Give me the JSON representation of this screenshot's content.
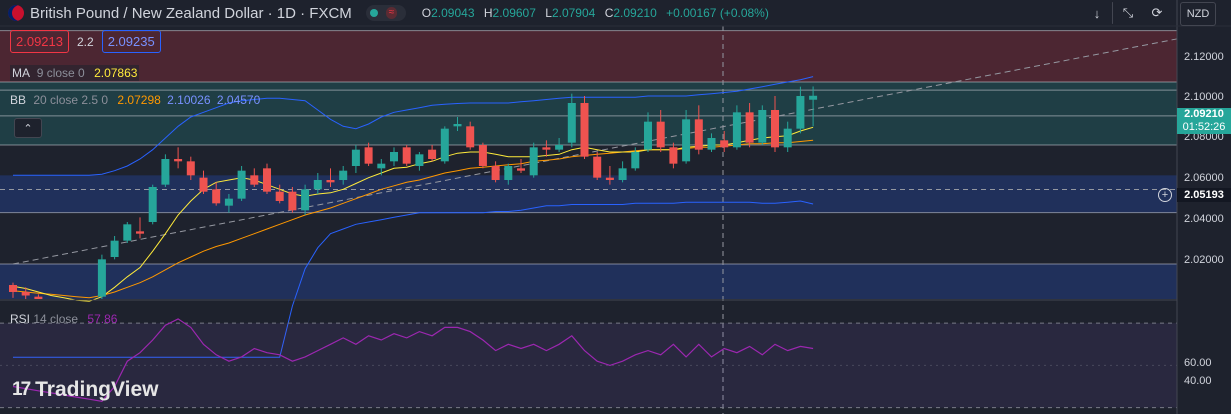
{
  "header": {
    "symbol": "British Pound / New Zealand Dollar · 1D · FXCM",
    "ohlc": [
      {
        "k": "O",
        "v": "2.09043"
      },
      {
        "k": "H",
        "v": "2.09607"
      },
      {
        "k": "L",
        "v": "2.07904"
      },
      {
        "k": "C",
        "v": "2.09210"
      }
    ],
    "change": "+0.00167 (+0.08%)",
    "wave_glyph": "≈"
  },
  "trade": {
    "sell": "2.09213",
    "spread": "2.2",
    "buy": "2.09235"
  },
  "indicators": {
    "ma": {
      "name": "MA",
      "params": "9 close 0",
      "value": "2.07863",
      "color": "#ffeb3b"
    },
    "bb": {
      "name": "BB",
      "params": "20 close 2.5 0",
      "basis": "2.07298",
      "upper": "2.10026",
      "lower": "2.04570",
      "basis_color": "#ff9800",
      "band_color": "#2962ff"
    },
    "rsi": {
      "name": "RSI",
      "params": "14 close",
      "value": "57.86",
      "color": "#9c27b0"
    }
  },
  "toolbar": {
    "down_icon": "↓",
    "expand_icon": "⤡",
    "restore_icon": "⟳",
    "currency": "NZD",
    "collapse_icon": "⌃"
  },
  "price_axis": {
    "labels": [
      "2.12000",
      "2.10000",
      "2.08000",
      "2.06000",
      "2.04000",
      "2.02000"
    ],
    "last_price": "2.09210",
    "countdown": "01:52:26",
    "crosshair_price": "2.05193",
    "plus_icon": "+"
  },
  "rsi_axis": {
    "labels": [
      "60.00",
      "40.00"
    ]
  },
  "brand": {
    "mark": "17",
    "name": "TradingView"
  },
  "colors": {
    "up": "#26a69a",
    "down": "#ef5350",
    "bg": "#1e222d"
  },
  "chart_data": {
    "type": "candlestick",
    "ylim": [
      2.005,
      2.122
    ],
    "zones": [
      {
        "from": 2.098,
        "to": 2.12,
        "color": "#f23645"
      },
      {
        "from": 2.071,
        "to": 2.098,
        "color": "#26a69a"
      },
      {
        "from": 2.042,
        "to": 2.058,
        "color": "#2962ff"
      },
      {
        "from": 2.005,
        "to": 2.02,
        "color": "#2962ff"
      }
    ],
    "hlines": [
      2.12,
      2.098,
      2.0945,
      2.0835,
      2.071,
      2.042,
      2.02
    ],
    "candles": [
      {
        "o": 2.011,
        "h": 2.012,
        "l": 2.0055,
        "c": 2.008
      },
      {
        "o": 2.008,
        "h": 2.01,
        "l": 2.005,
        "c": 2.0065
      },
      {
        "o": 2.006,
        "h": 2.007,
        "l": 2.003,
        "c": 2.004
      },
      {
        "o": 2.004,
        "h": 2.005,
        "l": 2.002,
        "c": 2.003
      },
      {
        "o": 2.003,
        "h": 2.004,
        "l": 2.001,
        "c": 2.002
      },
      {
        "o": 2.002,
        "h": 2.003,
        "l": 2.0,
        "c": 2.001
      },
      {
        "o": 2.001,
        "h": 2.002,
        "l": 2.0,
        "c": 2.001
      },
      {
        "o": 2.006,
        "h": 2.024,
        "l": 2.004,
        "c": 2.022
      },
      {
        "o": 2.023,
        "h": 2.032,
        "l": 2.022,
        "c": 2.03
      },
      {
        "o": 2.03,
        "h": 2.038,
        "l": 2.029,
        "c": 2.037
      },
      {
        "o": 2.034,
        "h": 2.04,
        "l": 2.031,
        "c": 2.033
      },
      {
        "o": 2.038,
        "h": 2.054,
        "l": 2.037,
        "c": 2.053
      },
      {
        "o": 2.054,
        "h": 2.067,
        "l": 2.053,
        "c": 2.065
      },
      {
        "o": 2.065,
        "h": 2.07,
        "l": 2.061,
        "c": 2.064
      },
      {
        "o": 2.064,
        "h": 2.066,
        "l": 2.056,
        "c": 2.058
      },
      {
        "o": 2.057,
        "h": 2.06,
        "l": 2.05,
        "c": 2.051
      },
      {
        "o": 2.052,
        "h": 2.055,
        "l": 2.045,
        "c": 2.046
      },
      {
        "o": 2.045,
        "h": 2.05,
        "l": 2.042,
        "c": 2.048
      },
      {
        "o": 2.048,
        "h": 2.062,
        "l": 2.047,
        "c": 2.06
      },
      {
        "o": 2.058,
        "h": 2.061,
        "l": 2.053,
        "c": 2.054
      },
      {
        "o": 2.061,
        "h": 2.063,
        "l": 2.05,
        "c": 2.051
      },
      {
        "o": 2.051,
        "h": 2.054,
        "l": 2.046,
        "c": 2.047
      },
      {
        "o": 2.051,
        "h": 2.053,
        "l": 2.042,
        "c": 2.043
      },
      {
        "o": 2.043,
        "h": 2.054,
        "l": 2.041,
        "c": 2.052
      },
      {
        "o": 2.052,
        "h": 2.059,
        "l": 2.05,
        "c": 2.056
      },
      {
        "o": 2.056,
        "h": 2.061,
        "l": 2.053,
        "c": 2.055
      },
      {
        "o": 2.056,
        "h": 2.062,
        "l": 2.054,
        "c": 2.06
      },
      {
        "o": 2.062,
        "h": 2.071,
        "l": 2.059,
        "c": 2.069
      },
      {
        "o": 2.07,
        "h": 2.072,
        "l": 2.062,
        "c": 2.063
      },
      {
        "o": 2.061,
        "h": 2.065,
        "l": 2.058,
        "c": 2.063
      },
      {
        "o": 2.064,
        "h": 2.07,
        "l": 2.062,
        "c": 2.068
      },
      {
        "o": 2.07,
        "h": 2.071,
        "l": 2.062,
        "c": 2.063
      },
      {
        "o": 2.062,
        "h": 2.068,
        "l": 2.06,
        "c": 2.067
      },
      {
        "o": 2.069,
        "h": 2.071,
        "l": 2.064,
        "c": 2.065
      },
      {
        "o": 2.064,
        "h": 2.079,
        "l": 2.063,
        "c": 2.078
      },
      {
        "o": 2.079,
        "h": 2.083,
        "l": 2.077,
        "c": 2.08
      },
      {
        "o": 2.079,
        "h": 2.081,
        "l": 2.069,
        "c": 2.07
      },
      {
        "o": 2.071,
        "h": 2.072,
        "l": 2.061,
        "c": 2.062
      },
      {
        "o": 2.062,
        "h": 2.064,
        "l": 2.055,
        "c": 2.056
      },
      {
        "o": 2.056,
        "h": 2.063,
        "l": 2.054,
        "c": 2.062
      },
      {
        "o": 2.061,
        "h": 2.065,
        "l": 2.059,
        "c": 2.06
      },
      {
        "o": 2.058,
        "h": 2.072,
        "l": 2.057,
        "c": 2.07
      },
      {
        "o": 2.07,
        "h": 2.073,
        "l": 2.066,
        "c": 2.069
      },
      {
        "o": 2.069,
        "h": 2.074,
        "l": 2.068,
        "c": 2.071
      },
      {
        "o": 2.072,
        "h": 2.093,
        "l": 2.07,
        "c": 2.089
      },
      {
        "o": 2.089,
        "h": 2.092,
        "l": 2.065,
        "c": 2.066
      },
      {
        "o": 2.066,
        "h": 2.068,
        "l": 2.056,
        "c": 2.057
      },
      {
        "o": 2.057,
        "h": 2.062,
        "l": 2.054,
        "c": 2.056
      },
      {
        "o": 2.056,
        "h": 2.064,
        "l": 2.055,
        "c": 2.061
      },
      {
        "o": 2.061,
        "h": 2.07,
        "l": 2.06,
        "c": 2.068
      },
      {
        "o": 2.069,
        "h": 2.085,
        "l": 2.068,
        "c": 2.081
      },
      {
        "o": 2.081,
        "h": 2.086,
        "l": 2.068,
        "c": 2.07
      },
      {
        "o": 2.07,
        "h": 2.072,
        "l": 2.061,
        "c": 2.063
      },
      {
        "o": 2.064,
        "h": 2.086,
        "l": 2.063,
        "c": 2.082
      },
      {
        "o": 2.082,
        "h": 2.088,
        "l": 2.067,
        "c": 2.069
      },
      {
        "o": 2.069,
        "h": 2.076,
        "l": 2.068,
        "c": 2.074
      },
      {
        "o": 2.073,
        "h": 2.077,
        "l": 2.068,
        "c": 2.07
      },
      {
        "o": 2.07,
        "h": 2.088,
        "l": 2.069,
        "c": 2.085
      },
      {
        "o": 2.085,
        "h": 2.089,
        "l": 2.07,
        "c": 2.072
      },
      {
        "o": 2.072,
        "h": 2.088,
        "l": 2.071,
        "c": 2.086
      },
      {
        "o": 2.086,
        "h": 2.092,
        "l": 2.068,
        "c": 2.07
      },
      {
        "o": 2.07,
        "h": 2.081,
        "l": 2.068,
        "c": 2.078
      },
      {
        "o": 2.078,
        "h": 2.096,
        "l": 2.076,
        "c": 2.092
      },
      {
        "o": 2.0904,
        "h": 2.0961,
        "l": 2.079,
        "c": 2.0921
      }
    ],
    "ma": [
      2.0105,
      2.0095,
      2.008,
      2.0065,
      2.0055,
      2.0045,
      2.004,
      2.006,
      2.01,
      2.0145,
      2.0185,
      2.0255,
      2.033,
      2.041,
      2.047,
      2.052,
      2.055,
      2.056,
      2.057,
      2.056,
      2.054,
      2.052,
      2.05,
      2.049,
      2.05,
      2.0505,
      2.052,
      2.0545,
      2.057,
      2.059,
      2.061,
      2.0615,
      2.063,
      2.064,
      2.066,
      2.0675,
      2.068,
      2.068,
      2.067,
      2.066,
      2.066,
      2.066,
      2.0665,
      2.067,
      2.069,
      2.07,
      2.069,
      2.068,
      2.068,
      2.068,
      2.069,
      2.069,
      2.069,
      2.07,
      2.0705,
      2.071,
      2.071,
      2.072,
      2.073,
      2.074,
      2.0745,
      2.075,
      2.077,
      2.0786
    ],
    "bb_basis": [
      2.0085,
      2.008,
      2.0075,
      2.007,
      2.0065,
      2.006,
      2.0055,
      2.0065,
      2.008,
      2.01,
      2.012,
      2.0145,
      2.0175,
      2.0205,
      2.023,
      2.0255,
      2.0275,
      2.029,
      2.031,
      2.033,
      2.035,
      2.037,
      2.039,
      2.041,
      2.0425,
      2.044,
      2.046,
      2.048,
      2.05,
      2.052,
      2.0535,
      2.055,
      2.056,
      2.0575,
      2.059,
      2.06,
      2.061,
      2.0615,
      2.062,
      2.0625,
      2.063,
      2.064,
      2.0645,
      2.065,
      2.066,
      2.0665,
      2.067,
      2.0675,
      2.068,
      2.0685,
      2.069,
      2.069,
      2.069,
      2.0695,
      2.07,
      2.07,
      2.0705,
      2.071,
      2.0715,
      2.0715,
      2.072,
      2.072,
      2.0725,
      2.073
    ],
    "bb_upper": [
      2.058,
      2.058,
      2.058,
      2.058,
      2.058,
      2.058,
      2.058,
      2.0585,
      2.06,
      2.062,
      2.065,
      2.069,
      2.074,
      2.079,
      2.083,
      2.085,
      2.087,
      2.089,
      2.09,
      2.0905,
      2.091,
      2.091,
      2.0905,
      2.09,
      2.086,
      2.082,
      2.079,
      2.078,
      2.08,
      2.083,
      2.085,
      2.086,
      2.087,
      2.088,
      2.0885,
      2.0888,
      2.089,
      2.089,
      2.089,
      2.089,
      2.0895,
      2.09,
      2.0905,
      2.091,
      2.0915,
      2.0915,
      2.0915,
      2.0915,
      2.0915,
      2.0915,
      2.092,
      2.092,
      2.092,
      2.092,
      2.0925,
      2.093,
      2.0935,
      2.094,
      2.095,
      2.096,
      2.097,
      2.098,
      2.099,
      2.1003
    ],
    "bb_lower": [
      1.98,
      1.98,
      1.98,
      1.98,
      1.98,
      1.98,
      1.98,
      1.98,
      1.98,
      1.98,
      1.98,
      1.98,
      1.98,
      1.98,
      1.98,
      1.98,
      1.98,
      1.98,
      1.98,
      1.98,
      1.98,
      1.98,
      2.002,
      2.018,
      2.027,
      2.033,
      2.035,
      2.037,
      2.038,
      2.039,
      2.04,
      2.041,
      2.042,
      2.042,
      2.042,
      2.042,
      2.042,
      2.042,
      2.0425,
      2.0425,
      2.043,
      2.044,
      2.045,
      2.045,
      2.0455,
      2.0455,
      2.0455,
      2.0455,
      2.0455,
      2.046,
      2.046,
      2.046,
      2.046,
      2.0465,
      2.0465,
      2.0465,
      2.0465,
      2.0465,
      2.0465,
      2.046,
      2.046,
      2.0465,
      2.047,
      2.0457
    ],
    "trendline": {
      "from": {
        "i": 0,
        "p": 2.02
      },
      "to": {
        "i": 95,
        "p": 2.12
      }
    },
    "rsi": [
      40,
      39,
      38,
      37,
      36,
      35,
      34,
      33,
      40,
      52,
      56,
      62,
      69,
      72,
      68,
      60,
      55,
      52,
      54,
      58,
      56,
      55,
      52,
      54,
      57,
      60,
      63,
      60,
      64,
      62,
      65,
      63,
      66,
      64,
      68,
      68,
      66,
      62,
      57,
      60,
      58,
      60,
      57,
      60,
      64,
      57,
      52,
      50,
      52,
      55,
      57,
      55,
      60,
      54,
      60,
      54,
      58,
      56,
      59,
      55,
      60,
      57,
      59,
      58
    ],
    "rsi_ylim": [
      27,
      80
    ]
  }
}
